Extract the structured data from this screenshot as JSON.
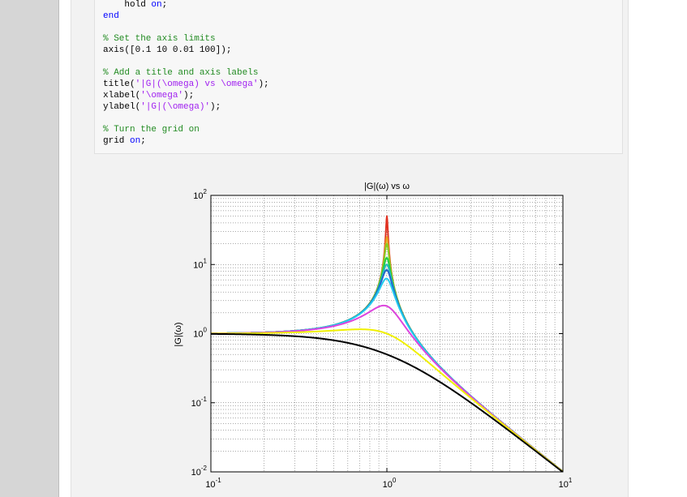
{
  "code": {
    "lines": [
      [
        {
          "t": "    hold ",
          "c": ""
        },
        {
          "t": "on",
          "c": "kw"
        },
        {
          "t": ";",
          "c": ""
        }
      ],
      [
        {
          "t": "end",
          "c": "kw"
        }
      ],
      [
        {
          "t": "",
          "c": ""
        }
      ],
      [
        {
          "t": "% Set the axis limits",
          "c": "cm"
        }
      ],
      [
        {
          "t": "axis([0.1 10 0.01 100]);",
          "c": ""
        }
      ],
      [
        {
          "t": "",
          "c": ""
        }
      ],
      [
        {
          "t": "% Add a title and axis labels",
          "c": "cm"
        }
      ],
      [
        {
          "t": "title(",
          "c": ""
        },
        {
          "t": "'|G|(\\omega) vs \\omega'",
          "c": "st"
        },
        {
          "t": ");",
          "c": ""
        }
      ],
      [
        {
          "t": "xlabel(",
          "c": ""
        },
        {
          "t": "'\\omega'",
          "c": "st"
        },
        {
          "t": ");",
          "c": ""
        }
      ],
      [
        {
          "t": "ylabel(",
          "c": ""
        },
        {
          "t": "'|G|(\\omega)'",
          "c": "st"
        },
        {
          "t": ");",
          "c": ""
        }
      ],
      [
        {
          "t": "",
          "c": ""
        }
      ],
      [
        {
          "t": "% Turn the grid on",
          "c": "cm"
        }
      ],
      [
        {
          "t": "grid ",
          "c": ""
        },
        {
          "t": "on",
          "c": "kw"
        },
        {
          "t": ";",
          "c": ""
        }
      ]
    ]
  },
  "chart_data": {
    "type": "line",
    "title": "|G|(ω) vs ω",
    "xlabel": "",
    "ylabel": "|G|(ω)",
    "xscale": "log",
    "yscale": "log",
    "xlim": [
      0.1,
      10
    ],
    "ylim": [
      0.01,
      100
    ],
    "x_tick_labels": [
      {
        "base": "10",
        "exp": "-1"
      },
      {
        "base": "10",
        "exp": "0"
      },
      {
        "base": "10",
        "exp": "1"
      }
    ],
    "y_tick_labels": [
      {
        "base": "10",
        "exp": "-2"
      },
      {
        "base": "10",
        "exp": "-1"
      },
      {
        "base": "10",
        "exp": "0"
      },
      {
        "base": "10",
        "exp": "1"
      },
      {
        "base": "10",
        "exp": "2"
      }
    ],
    "grid": true,
    "model": "1/sqrt((1-ω²)² + (2ζω)²)",
    "series": [
      {
        "zeta": 0.01,
        "color": "#e03020"
      },
      {
        "zeta": 0.02,
        "color": "#e8a020"
      },
      {
        "zeta": 0.025,
        "color": "#88cc22"
      },
      {
        "zeta": 0.04,
        "color": "#22cc44"
      },
      {
        "zeta": 0.05,
        "color": "#22bbbb"
      },
      {
        "zeta": 0.06,
        "color": "#2266cc"
      },
      {
        "zeta": 0.08,
        "color": "#22ccee"
      },
      {
        "zeta": 0.2,
        "color": "#dd44dd"
      },
      {
        "zeta": 0.5,
        "color": "#f0f000"
      },
      {
        "zeta": 1.0,
        "color": "#000000"
      }
    ]
  }
}
